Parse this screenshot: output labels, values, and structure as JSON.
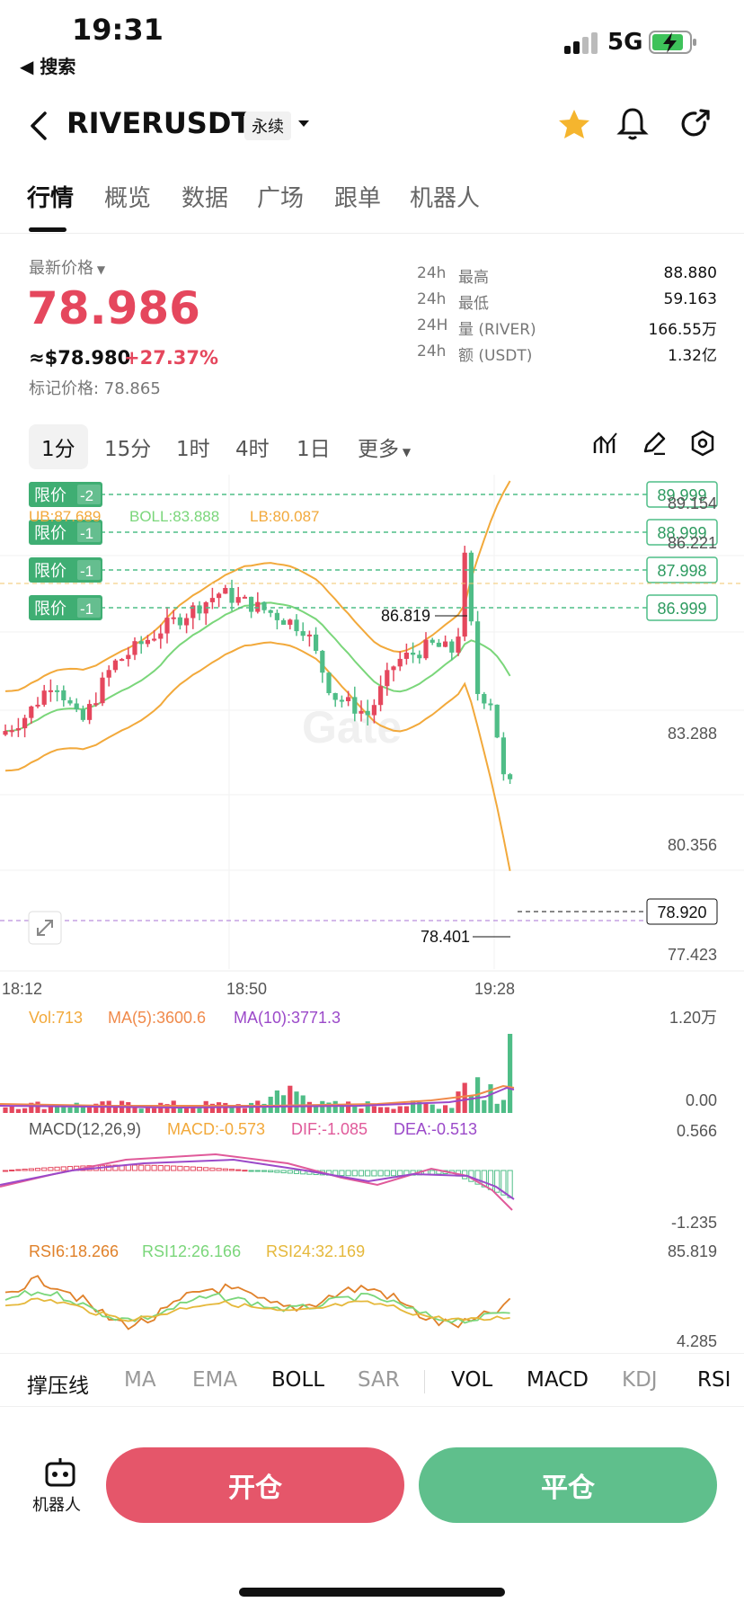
{
  "status": {
    "time": "19:31",
    "back_label": "◀ 搜索",
    "network": "5G"
  },
  "header": {
    "symbol": "RIVERUSDT",
    "contract_type": "永续"
  },
  "tabs": [
    "行情",
    "概览",
    "数据",
    "广场",
    "跟单",
    "机器人"
  ],
  "ticker": {
    "last_price_label": "最新价格",
    "last_price": "78.986",
    "usd_price": "≈$78.980",
    "change_pct": "+27.37%",
    "mark_price": "标记价格: 78.865",
    "stats": [
      {
        "k1": "24h",
        "k2": "最高",
        "v": "88.880"
      },
      {
        "k1": "24h",
        "k2": "最低",
        "v": "59.163"
      },
      {
        "k1": "24H",
        "k2": "量 (RIVER)",
        "v": "166.55万"
      },
      {
        "k1": "24h",
        "k2": "额 (USDT)",
        "v": "1.32亿"
      }
    ]
  },
  "intervals": [
    "1分",
    "15分",
    "1时",
    "4时",
    "1日",
    "更多"
  ],
  "chart": {
    "boll_labels": {
      "ub": "UB:87.689",
      "boll": "BOLL:83.888",
      "lb": "LB:80.087"
    },
    "limit_orders": [
      {
        "label": "限价",
        "qty": "-2",
        "price": "89.999"
      },
      {
        "label": "限价",
        "qty": "-1",
        "price": "88.999"
      },
      {
        "label": "限价",
        "qty": "-1",
        "price": "87.998"
      },
      {
        "label": "限价",
        "qty": "-1",
        "price": "86.999"
      }
    ],
    "y_ticks": [
      "89.154",
      "86.221",
      "83.288",
      "80.356",
      "77.423"
    ],
    "high_mark": "86.819",
    "low_mark": "78.401",
    "current_price": "78.920",
    "x_ticks": [
      "18:12",
      "18:50",
      "19:28"
    ],
    "vol_labels": {
      "vol": "Vol:713",
      "ma5": "MA(5):3600.6",
      "ma10": "MA(10):3771.3"
    },
    "vol_ticks": [
      "1.20万",
      "0.00"
    ],
    "macd_labels": {
      "title": "MACD(12,26,9)",
      "macd": "MACD:-0.573",
      "dif": "DIF:-1.085",
      "dea": "DEA:-0.513"
    },
    "macd_ticks": [
      "0.566",
      "-1.235"
    ],
    "rsi_labels": {
      "r6": "RSI6:18.266",
      "r12": "RSI12:26.166",
      "r24": "RSI24:32.169"
    },
    "rsi_ticks": [
      "85.819",
      "4.285"
    ]
  },
  "indicators": [
    "撑压线",
    "MA",
    "EMA",
    "BOLL",
    "SAR",
    "VOL",
    "MACD",
    "KDJ",
    "RSI"
  ],
  "bottom": {
    "robot_label": "机器人",
    "open_label": "开仓",
    "close_label": "平仓"
  },
  "colors": {
    "up": "#e5475d",
    "down": "#4fbd87",
    "boll_mid": "#7ad67a",
    "boll_band": "#f2a93b",
    "macd_dif": "#e05a9a",
    "macd_dea": "#9b49c9"
  }
}
